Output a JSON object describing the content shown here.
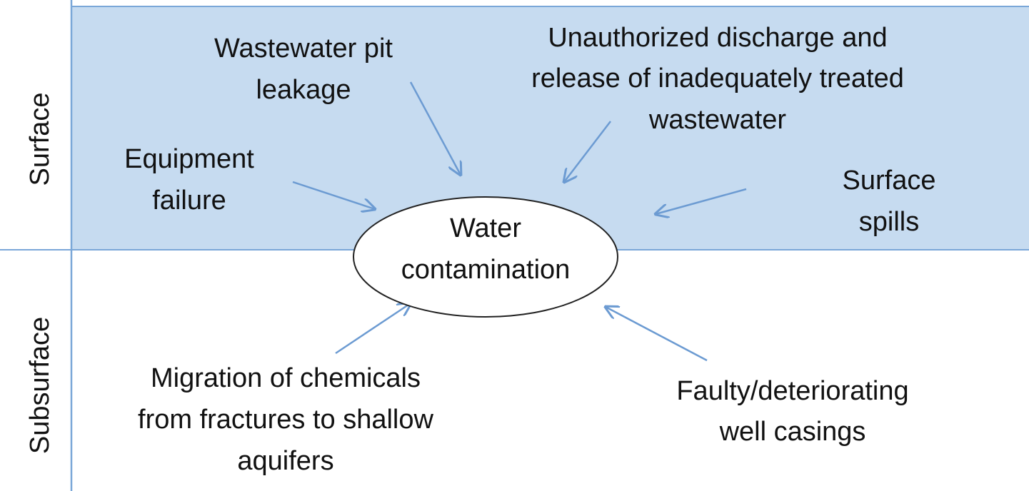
{
  "zones": [
    {
      "label": "Surface"
    },
    {
      "label": "Subsurface"
    }
  ],
  "center": {
    "lines": [
      "Water",
      "contamination"
    ]
  },
  "nodes": [
    {
      "lines": [
        "Wastewater pit",
        "leakage"
      ]
    },
    {
      "lines": [
        "Unauthorized discharge and",
        "release of inadequately treated",
        "wastewater"
      ]
    },
    {
      "lines": [
        "Equipment",
        "failure"
      ]
    },
    {
      "lines": [
        "Surface",
        "spills"
      ]
    },
    {
      "lines": [
        "Migration of chemicals",
        "from fractures to shallow",
        "aquifers"
      ]
    },
    {
      "lines": [
        "Faulty/deteriorating",
        "well casings"
      ]
    }
  ]
}
